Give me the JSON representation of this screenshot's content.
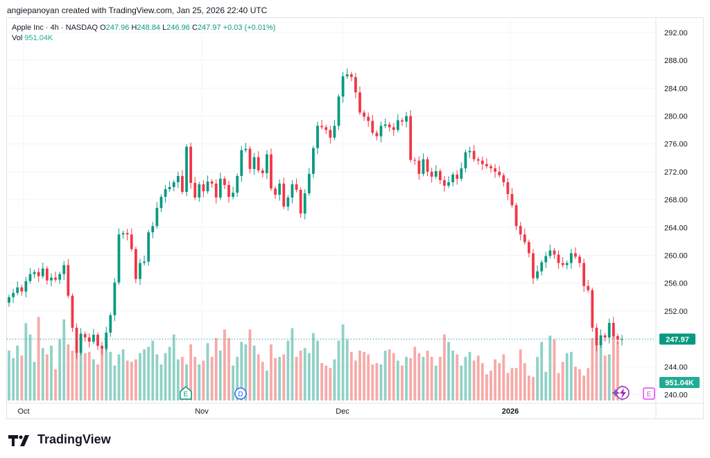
{
  "header": {
    "text": "angiepanoyan created with TradingView.com, Jan 25, 2026 22:40 UTC"
  },
  "legend": {
    "symbol": "Apple Inc · 4h · NASDAQ",
    "o_label": "O",
    "o_val": "247.96",
    "h_label": "H",
    "h_val": "248.84",
    "l_label": "L",
    "l_val": "246.96",
    "c_label": "C",
    "c_val": "247.97",
    "change": "+0.03 (+0.01%)",
    "vol_label": "Vol",
    "vol_val": "951.04K"
  },
  "footer": {
    "brand": "TradingView"
  },
  "colors": {
    "up": "#089981",
    "down": "#f23645",
    "vol_up": "#8fd1c6",
    "vol_down": "#f7a9a7",
    "grid": "#f0f3fa"
  },
  "chart_data": {
    "type": "candlestick",
    "ylim": [
      238.5,
      293.5
    ],
    "y_ticks": [
      "292.00",
      "288.00",
      "284.00",
      "280.00",
      "276.00",
      "272.00",
      "268.00",
      "264.00",
      "260.00",
      "256.00",
      "252.00",
      "248.00",
      "244.00",
      "240.00"
    ],
    "x_labels": [
      "Oct",
      "Nov",
      "Dec",
      "2026"
    ],
    "last_price": "247.97",
    "last_volume": "951.04K",
    "event_markers": [
      "E",
      "D",
      "E"
    ],
    "closes": [
      254.0,
      254.6,
      255.4,
      254.8,
      256.3,
      257.3,
      257.6,
      257.0,
      258.1,
      256.4,
      256.8,
      256.5,
      257.3,
      258.6,
      254.2,
      249.6,
      246.0,
      248.7,
      248.2,
      247.6,
      248.6,
      247.0,
      246.6,
      248.9,
      251.4,
      256.1,
      263.0,
      263.2,
      263.0,
      260.9,
      256.6,
      258.9,
      259.1,
      263.3,
      264.2,
      266.8,
      268.4,
      269.5,
      269.8,
      270.5,
      271.4,
      269.1,
      275.6,
      270.4,
      268.3,
      270.2,
      269.2,
      270.6,
      270.3,
      268.3,
      271.0,
      270.1,
      268.4,
      269.0,
      271.4,
      275.1,
      275.3,
      272.4,
      274.1,
      272.2,
      271.8,
      274.5,
      269.6,
      268.7,
      270.3,
      267.0,
      268.3,
      270.2,
      269.4,
      266.0,
      268.9,
      271.7,
      275.4,
      278.6,
      278.4,
      278.0,
      276.9,
      278.6,
      282.8,
      285.7,
      286.0,
      285.6,
      283.4,
      280.5,
      279.9,
      279.3,
      277.6,
      277.1,
      278.6,
      278.8,
      278.4,
      278.0,
      279.4,
      279.2,
      280.0,
      273.7,
      273.6,
      271.7,
      273.8,
      272.0,
      271.3,
      272.1,
      270.8,
      270.0,
      270.5,
      271.6,
      271.0,
      272.5,
      274.8,
      275.0,
      273.8,
      273.6,
      273.1,
      272.8,
      272.5,
      272.0,
      271.5,
      270.5,
      268.8,
      267.2,
      264.2,
      263.0,
      261.9,
      260.3,
      256.7,
      257.7,
      259.0,
      259.9,
      260.7,
      260.1,
      258.9,
      258.6,
      258.9,
      260.3,
      259.8,
      258.9,
      255.6,
      255.0,
      249.6,
      247.1,
      248.5,
      248.2,
      250.3,
      248.4,
      247.9,
      247.97
    ],
    "volumes": [
      0.4,
      0.34,
      0.44,
      0.36,
      0.62,
      0.53,
      0.31,
      0.67,
      0.42,
      0.37,
      0.44,
      0.25,
      0.49,
      0.65,
      0.45,
      0.4,
      0.39,
      0.54,
      0.38,
      0.39,
      0.33,
      0.29,
      0.44,
      0.54,
      0.39,
      0.28,
      0.37,
      0.41,
      0.32,
      0.31,
      0.33,
      0.38,
      0.41,
      0.43,
      0.48,
      0.37,
      0.29,
      0.38,
      0.43,
      0.53,
      0.33,
      0.35,
      0.29,
      0.45,
      0.35,
      0.29,
      0.32,
      0.46,
      0.35,
      0.5,
      0.4,
      0.57,
      0.5,
      0.28,
      0.35,
      0.47,
      0.45,
      0.57,
      0.44,
      0.37,
      0.31,
      0.24,
      0.45,
      0.34,
      0.35,
      0.37,
      0.48,
      0.58,
      0.35,
      0.4,
      0.42,
      0.38,
      0.54,
      0.48,
      0.3,
      0.28,
      0.26,
      0.33,
      0.48,
      0.61,
      0.49,
      0.39,
      0.32,
      0.4,
      0.39,
      0.37,
      0.29,
      0.3,
      0.29,
      0.4,
      0.41,
      0.38,
      0.32,
      0.28,
      0.35,
      0.34,
      0.43,
      0.38,
      0.35,
      0.4,
      0.35,
      0.28,
      0.35,
      0.53,
      0.47,
      0.4,
      0.37,
      0.28,
      0.35,
      0.39,
      0.32,
      0.36,
      0.3,
      0.21,
      0.24,
      0.33,
      0.3,
      0.37,
      0.22,
      0.26,
      0.26,
      0.41,
      0.3,
      0.2,
      0.19,
      0.35,
      0.47,
      0.23,
      0.52,
      0.49,
      0.22,
      0.31,
      0.38,
      0.39,
      0.27,
      0.25,
      0.2,
      0.26,
      0.5,
      0.45,
      0.48,
      0.36,
      0.37,
      0.59,
      0.47,
      0.12
    ]
  }
}
